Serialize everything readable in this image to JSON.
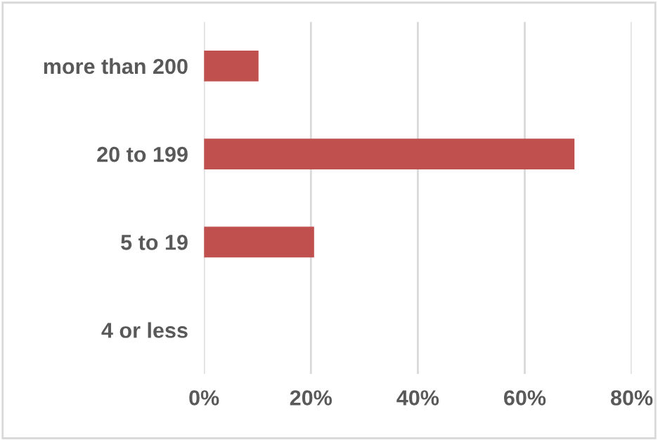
{
  "chart_data": {
    "type": "bar",
    "orientation": "horizontal",
    "categories": [
      "more than 200",
      "20 to 199",
      "5 to 19",
      "4 or less"
    ],
    "values": [
      10.2,
      69.3,
      20.6,
      0
    ],
    "color": "#c0504d",
    "xlim": [
      0,
      80
    ],
    "xticks": [
      {
        "value": 0,
        "label": "0%"
      },
      {
        "value": 20,
        "label": "20%"
      },
      {
        "value": 40,
        "label": "40%"
      },
      {
        "value": 60,
        "label": "60%"
      },
      {
        "value": 80,
        "label": "80%"
      }
    ],
    "grid": "x"
  }
}
